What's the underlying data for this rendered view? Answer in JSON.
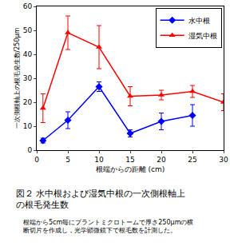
{
  "chart_data": {
    "type": "line",
    "title": "図２ 水中根および湿気中根の一次側根軸上の根毛発生数",
    "subtitle": "根端から5cm毎にプラントミクロトームで厚さ250μmの横断切片を作成し，光学顕微鏡下で根毛数を計測した。",
    "x_label": "根端からの距離 (cm)",
    "y_label": "一次側根軸上の根毛発生数/250μm",
    "xlim": [
      0,
      30
    ],
    "xticks": [
      0,
      5,
      10,
      15,
      20,
      25,
      30
    ],
    "ylim": [
      0,
      60
    ],
    "yticks": [
      0,
      10,
      20,
      30,
      40,
      50,
      60
    ],
    "grid": false,
    "legend": "top right",
    "series": [
      {
        "name": "水中根",
        "color": "#0000ff",
        "marker": "diamond",
        "x": [
          1,
          5,
          10,
          15,
          20,
          25
        ],
        "values": [
          4,
          12.5,
          26.5,
          7,
          12,
          14.5
        ],
        "errors": [
          1,
          3.5,
          2,
          1.5,
          3.5,
          4.5
        ]
      },
      {
        "name": "湿気中根",
        "color": "#ff0000",
        "marker": "triangle-up",
        "x": [
          1,
          5,
          10,
          15,
          20,
          25,
          30
        ],
        "values": [
          17.5,
          49,
          43,
          22.5,
          23,
          24.5,
          20
        ],
        "errors": [
          6,
          7,
          9,
          4,
          2,
          2.5,
          3.5
        ]
      }
    ]
  }
}
